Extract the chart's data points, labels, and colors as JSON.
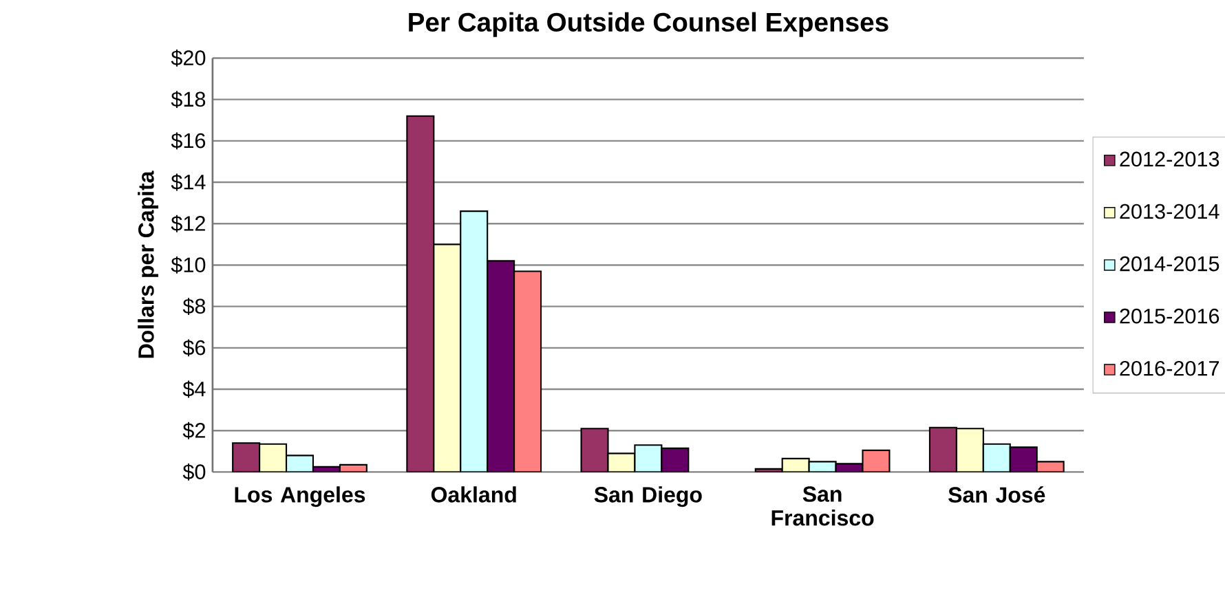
{
  "chart_data": {
    "type": "bar",
    "title": "Per Capita Outside Counsel Expenses",
    "ylabel": "Dollars per Capita",
    "categories": [
      "Los Angeles",
      "Oakland",
      "San Diego",
      "San Francisco",
      "San José"
    ],
    "series": [
      {
        "name": "2012-2013",
        "color": "#993366",
        "values": [
          1.4,
          17.2,
          2.1,
          0.15,
          2.15
        ]
      },
      {
        "name": "2013-2014",
        "color": "#ffffcc",
        "values": [
          1.35,
          11.0,
          0.9,
          0.65,
          2.1
        ]
      },
      {
        "name": "2014-2015",
        "color": "#ccffff",
        "values": [
          0.8,
          12.6,
          1.3,
          0.5,
          1.35
        ]
      },
      {
        "name": "2015-2016",
        "color": "#660066",
        "values": [
          0.25,
          10.2,
          1.15,
          0.4,
          1.2
        ]
      },
      {
        "name": "2016-2017",
        "color": "#ff8080",
        "values": [
          0.35,
          9.7,
          null,
          1.05,
          0.5
        ]
      }
    ],
    "ylim": [
      0,
      20
    ],
    "yticks": [
      {
        "value": 0,
        "label": "$0"
      },
      {
        "value": 2,
        "label": "$2"
      },
      {
        "value": 4,
        "label": "$4"
      },
      {
        "value": 6,
        "label": "$6"
      },
      {
        "value": 8,
        "label": "$8"
      },
      {
        "value": 10,
        "label": "$10"
      },
      {
        "value": 12,
        "label": "$12"
      },
      {
        "value": 14,
        "label": "$14"
      },
      {
        "value": 16,
        "label": "$16"
      },
      {
        "value": 18,
        "label": "$18"
      },
      {
        "value": 20,
        "label": "$20"
      }
    ],
    "grid": "y",
    "legend": "right"
  }
}
